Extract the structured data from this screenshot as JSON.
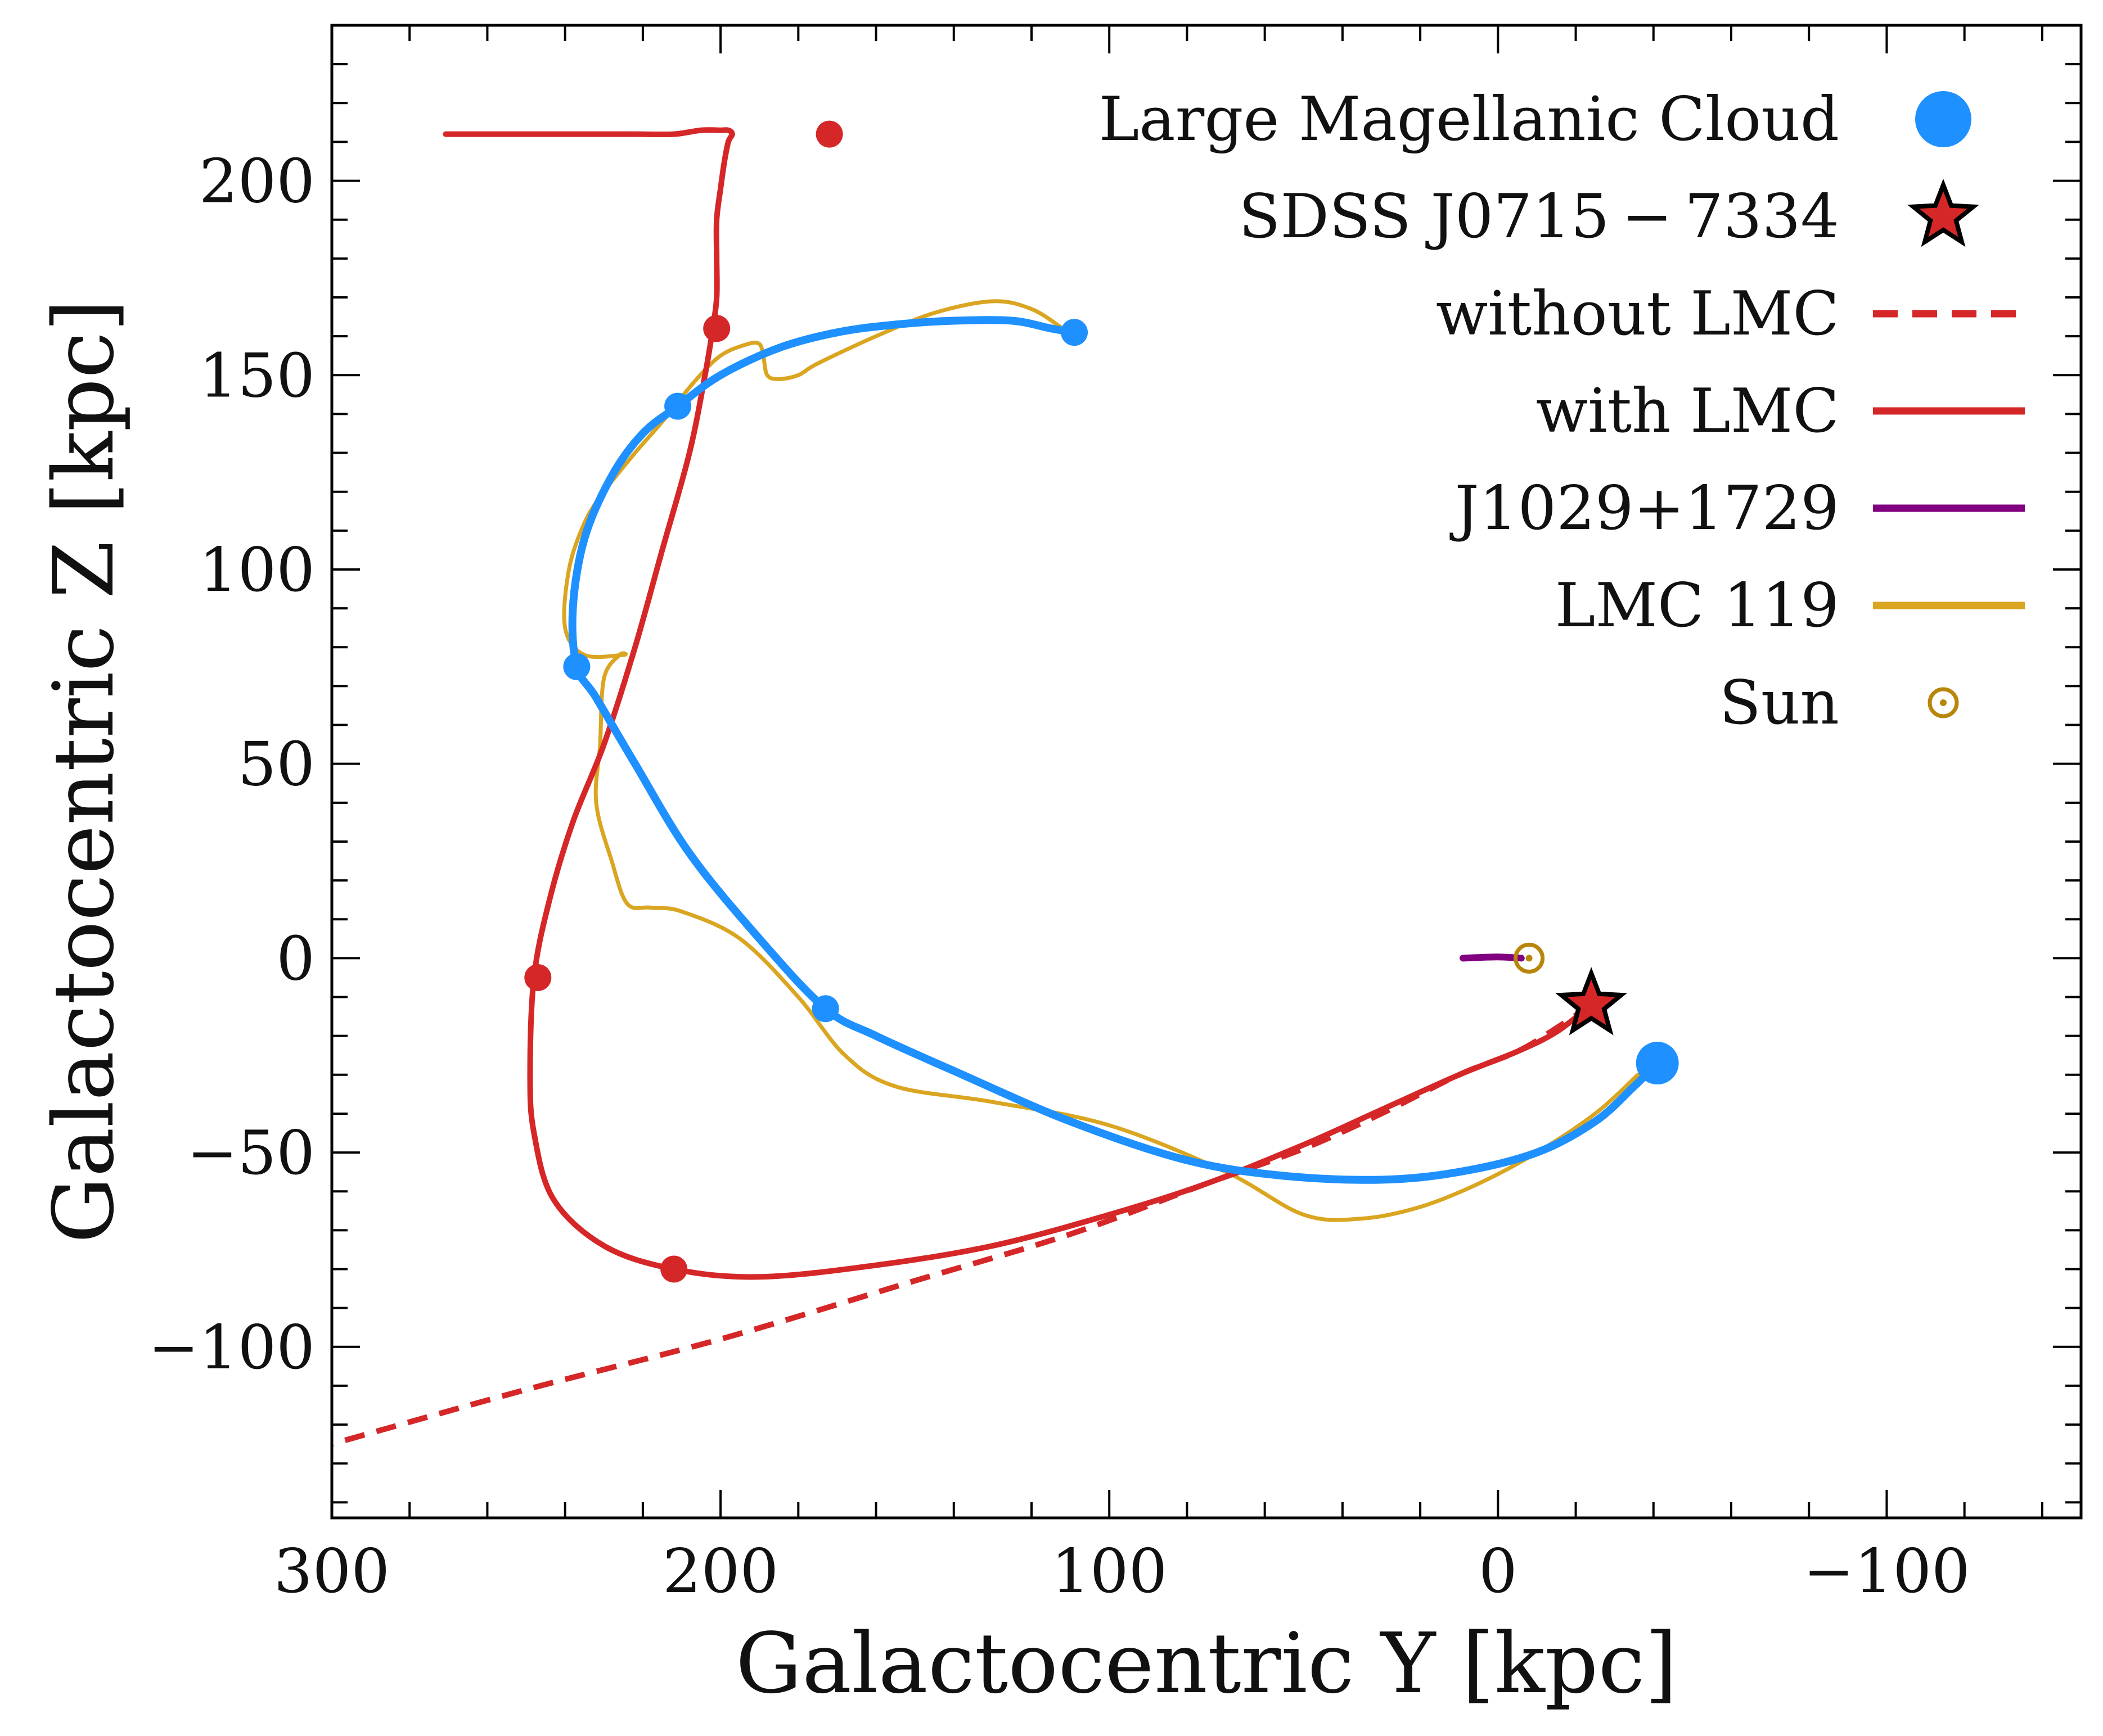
{
  "chart_data": {
    "type": "line",
    "xlabel": "Galactocentric Y [kpc]",
    "ylabel": "Galactocentric Z [kpc]",
    "xlim": [
      300,
      -150
    ],
    "ylim": [
      -144,
      240
    ],
    "x_inverted": true,
    "grid": false,
    "legend_position": "top-right",
    "x_major_ticks": [
      300,
      200,
      100,
      0,
      -100
    ],
    "x_tick_labels": [
      "300",
      "200",
      "100",
      "0",
      "−100"
    ],
    "x_minor_step": 20,
    "y_major_ticks": [
      200,
      150,
      100,
      50,
      0,
      -50,
      -100
    ],
    "y_tick_labels": [
      "200",
      "150",
      "100",
      "50",
      "0",
      "−50",
      "−100"
    ],
    "y_minor_step": 10,
    "colors": {
      "lmc": "#1e90ff",
      "red": "#d62728",
      "purple": "#800080",
      "gold": "#daa520",
      "sun": "#b8860b",
      "star_edge": "#000000"
    },
    "legend": [
      {
        "label": "Large Magellanic Cloud",
        "marker": "circle",
        "color": "#1e90ff"
      },
      {
        "label": "SDSS J0715 − 7334",
        "marker": "star",
        "color": "#d62728"
      },
      {
        "label": "without LMC",
        "marker": "dashed-line",
        "color": "#d62728"
      },
      {
        "label": "with LMC",
        "marker": "solid-line",
        "color": "#d62728"
      },
      {
        "label": "J1029+1729",
        "marker": "solid-line",
        "color": "#800080"
      },
      {
        "label": "LMC 119",
        "marker": "solid-line",
        "color": "#daa520"
      },
      {
        "label": "Sun",
        "marker": "sun",
        "color": "#b8860b"
      }
    ],
    "series": [
      {
        "name": "without LMC",
        "color": "#d62728",
        "style": "dashed",
        "x": [
          -24,
          -15,
          -5,
          10,
          30,
          50,
          75,
          110,
          150,
          200,
          250,
          300
        ],
        "y": [
          -12,
          -18,
          -24,
          -30,
          -40,
          -49,
          -58,
          -71,
          -83,
          -98,
          -111,
          -125
        ]
      },
      {
        "name": "with LMC",
        "color": "#d62728",
        "style": "solid",
        "x": [
          -24,
          -15,
          -5,
          10,
          30,
          50,
          75,
          100,
          130,
          160,
          190,
          212,
          230,
          243,
          248,
          249,
          248,
          244,
          238,
          230,
          222,
          215,
          208,
          204,
          202,
          201,
          201,
          201,
          200,
          199,
          198,
          197,
          198,
          200,
          205,
          212,
          222,
          235,
          250,
          262,
          265,
          270,
          248,
          240,
          230
        ],
        "y": [
          -12,
          -19,
          -24,
          -30,
          -39,
          -48,
          -58,
          -66,
          -74,
          -79,
          -82,
          -80,
          -74,
          -62,
          -45,
          -30,
          -5,
          15,
          35,
          55,
          80,
          105,
          130,
          150,
          162,
          170,
          180,
          190,
          198,
          205,
          210,
          212,
          213,
          213,
          213,
          212,
          212,
          212,
          212,
          212,
          212,
          212,
          212,
          212,
          212
        ]
      },
      {
        "name": "LMC",
        "color": "#1e90ff",
        "style": "solid",
        "x": [
          -41,
          -35,
          -25,
          -10,
          10,
          30,
          55,
          80,
          110,
          140,
          160,
          173,
          190,
          208,
          222,
          232,
          237,
          238,
          235,
          228,
          220,
          211,
          200,
          185,
          170,
          155,
          140,
          125,
          115,
          109
        ],
        "y": [
          -27,
          -33,
          -42,
          -50,
          -55,
          -57,
          -56,
          -52,
          -42,
          -29,
          -20,
          -13,
          5,
          27,
          50,
          67,
          75,
          90,
          108,
          124,
          135,
          142,
          150,
          157,
          161,
          163,
          164,
          164,
          162,
          161
        ]
      },
      {
        "name": "LMC 119",
        "color": "#daa520",
        "style": "solid",
        "x": [
          -36,
          -25,
          -10,
          5,
          20,
          35,
          50,
          70,
          100,
          130,
          155,
          168,
          180,
          195,
          210,
          218,
          224,
          228,
          232,
          231,
          230,
          226,
          225,
          235,
          240,
          239,
          235,
          230,
          222,
          215,
          207,
          200,
          193,
          190,
          189,
          188,
          185,
          180,
          175,
          160,
          145,
          130,
          120,
          112
        ],
        "y": [
          -30,
          -40,
          -50,
          -58,
          -64,
          -67,
          -66,
          -55,
          -43,
          -37,
          -33,
          -25,
          -10,
          5,
          12,
          13,
          14,
          25,
          40,
          55,
          72,
          78,
          78,
          78,
          85,
          100,
          112,
          120,
          130,
          138,
          148,
          155,
          158,
          158,
          155,
          150,
          149,
          150,
          153,
          160,
          166,
          169,
          167,
          162
        ]
      },
      {
        "name": "J1029+1729",
        "color": "#800080",
        "style": "solid",
        "x": [
          9,
          0,
          -6
        ],
        "y": [
          0,
          0.3,
          0
        ]
      }
    ],
    "points": [
      {
        "name": "LMC",
        "color": "#1e90ff",
        "size": "large",
        "x": [
          -41
        ],
        "y": [
          -27
        ]
      },
      {
        "name": "LMC",
        "color": "#1e90ff",
        "size": "small",
        "x": [
          173,
          237,
          211,
          109
        ],
        "y": [
          -13,
          75,
          142,
          161
        ]
      },
      {
        "name": "with LMC",
        "color": "#d62728",
        "size": "small",
        "x": [
          212,
          247,
          201,
          172
        ],
        "y": [
          -80,
          -5,
          162,
          212
        ]
      },
      {
        "name": "SDSS J0715 − 7334",
        "color": "#d62728",
        "marker": "star",
        "x": [
          -24
        ],
        "y": [
          -12
        ]
      },
      {
        "name": "Sun",
        "color": "#b8860b",
        "marker": "sun",
        "x": [
          -8
        ],
        "y": [
          0
        ]
      }
    ]
  }
}
